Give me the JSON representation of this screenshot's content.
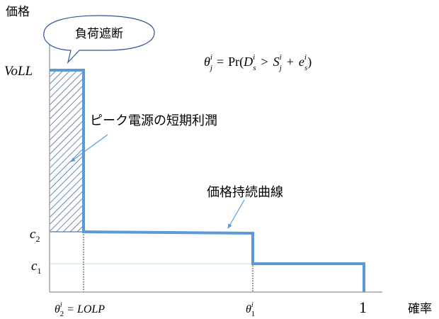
{
  "axes": {
    "y_label": "価格",
    "x_label": "確率"
  },
  "callout": {
    "text": "負荷遮断"
  },
  "formula": {
    "theta": "θ",
    "theta_sub": "j",
    "theta_sup": "i",
    "eq": "=",
    "pr": "Pr(",
    "d": "D",
    "d_sub": "s",
    "d_sup": "i",
    "gt": ">",
    "s": "S",
    "s_sub": "j",
    "s_sup": "i",
    "plus": "+",
    "e": "e",
    "e_sub": "s",
    "e_sup": "i",
    "close": ")"
  },
  "y_ticks": {
    "voll": "VoLL",
    "c2": "c",
    "c2_sub": "2",
    "c1": "c",
    "c1_sub": "1"
  },
  "x_ticks": {
    "theta2": "θ",
    "theta2_sub": "2",
    "theta2_sup": "i",
    "theta2_eq": "= LOLP",
    "theta1": "θ",
    "theta1_sub": "1",
    "theta1_sup": "i",
    "one": "1"
  },
  "annotations": {
    "peak_profit": "ピーク電源の短期利潤",
    "duration_curve": "価格持続曲線"
  },
  "colors": {
    "curve": "#5b9bd5",
    "hatch": "#2e5597",
    "axis": "#a6a6a6",
    "callout_border": "#2e5597"
  }
}
